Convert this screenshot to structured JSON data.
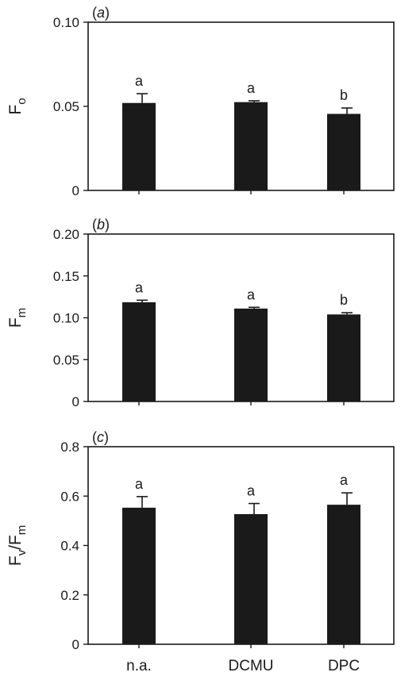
{
  "chart_data": [
    {
      "type": "bar",
      "panel_label": "(a)",
      "categories": [
        "n.a.",
        "DCMU",
        "DPC"
      ],
      "values": [
        0.052,
        0.0525,
        0.0455
      ],
      "errors": [
        0.0055,
        0.0008,
        0.0035
      ],
      "letters": [
        "a",
        "a",
        "b"
      ],
      "ylabel_main": "F",
      "ylabel_sub": "o",
      "ylim": [
        0,
        0.1
      ],
      "yticks": [
        0,
        0.05,
        0.1
      ],
      "ytick_labels": [
        "0",
        "0.05",
        "0.10"
      ]
    },
    {
      "type": "bar",
      "panel_label": "(b)",
      "categories": [
        "n.a.",
        "DCMU",
        "DPC"
      ],
      "values": [
        0.1185,
        0.111,
        0.104
      ],
      "errors": [
        0.0025,
        0.0015,
        0.002
      ],
      "letters": [
        "a",
        "a",
        "b"
      ],
      "ylabel_main": "F",
      "ylabel_sub": "m",
      "ylim": [
        0,
        0.2
      ],
      "yticks": [
        0,
        0.05,
        0.1,
        0.15,
        0.2
      ],
      "ytick_labels": [
        "0",
        "0.05",
        "0.10",
        "0.15",
        "0.20"
      ]
    },
    {
      "type": "bar",
      "panel_label": "(c)",
      "categories": [
        "n.a.",
        "DCMU",
        "DPC"
      ],
      "values": [
        0.553,
        0.527,
        0.565
      ],
      "errors": [
        0.045,
        0.043,
        0.048
      ],
      "letters": [
        "a",
        "a",
        "a"
      ],
      "ylabel_main": "F",
      "ylabel_sub": "v",
      "ylabel_mid": "/F",
      "ylabel_sub2": "m",
      "ylim": [
        0,
        0.8
      ],
      "yticks": [
        0,
        0.2,
        0.4,
        0.6,
        0.8
      ],
      "ytick_labels": [
        "0",
        "0.2",
        "0.4",
        "0.6",
        "0.8"
      ]
    }
  ],
  "x_categories": [
    "n.a.",
    "DCMU",
    "DPC"
  ],
  "colors": {
    "bar": "#1a1a1a",
    "axis": "#1a1a1a"
  }
}
